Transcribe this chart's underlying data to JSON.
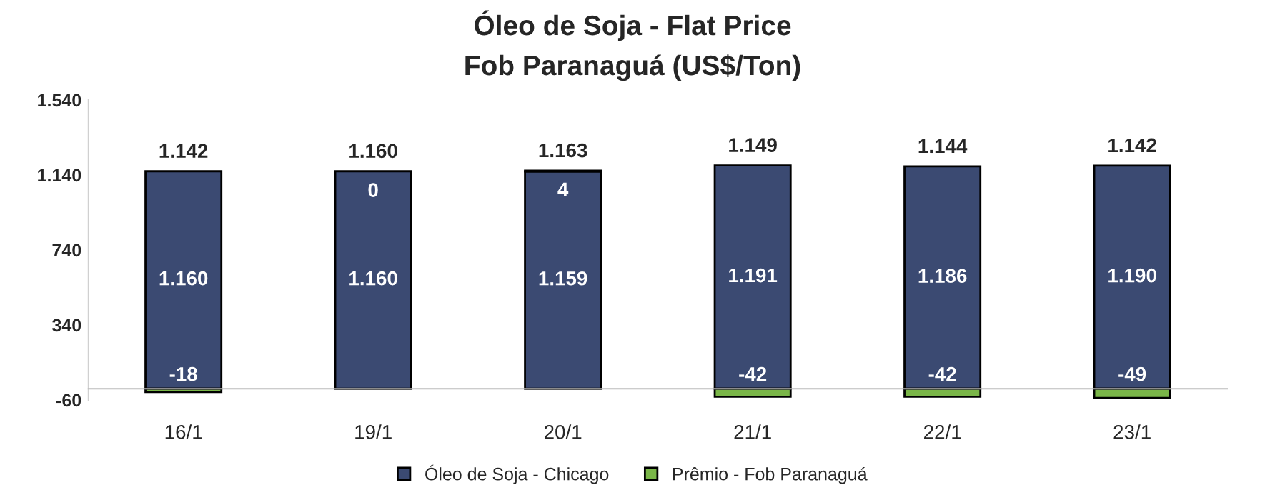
{
  "chart_data": {
    "type": "bar",
    "title": "Óleo de Soja - Flat Price",
    "subtitle": "Fob Paranaguá (US$/Ton)",
    "categories": [
      "16/1",
      "19/1",
      "20/1",
      "21/1",
      "22/1",
      "23/1"
    ],
    "stacked": true,
    "series": [
      {
        "name": "Óleo de Soja - Chicago",
        "color": "#3b4a72",
        "values": [
          1160,
          1160,
          1159,
          1191,
          1186,
          1190
        ],
        "value_labels": [
          "1.160",
          "1.160",
          "1.159",
          "1.191",
          "1.186",
          "1.190"
        ]
      },
      {
        "name": "Prêmio - Fob Paranaguá",
        "color": "#7ab648",
        "values": [
          -18,
          0,
          4,
          -42,
          -42,
          -49
        ],
        "value_labels": [
          "-18",
          "0",
          "4",
          "-42",
          "-42",
          "-49"
        ]
      }
    ],
    "totals": [
      "1.142",
      "1.160",
      "1.163",
      "1.149",
      "1.144",
      "1.142"
    ],
    "ylim": [
      -60,
      1540
    ],
    "yticks": [
      {
        "value": -60,
        "label": "-60"
      },
      {
        "value": 340,
        "label": "340"
      },
      {
        "value": 740,
        "label": "740"
      },
      {
        "value": 1140,
        "label": "1.140"
      },
      {
        "value": 1540,
        "label": "1.540"
      }
    ],
    "grid": false,
    "legend": "bottom"
  }
}
